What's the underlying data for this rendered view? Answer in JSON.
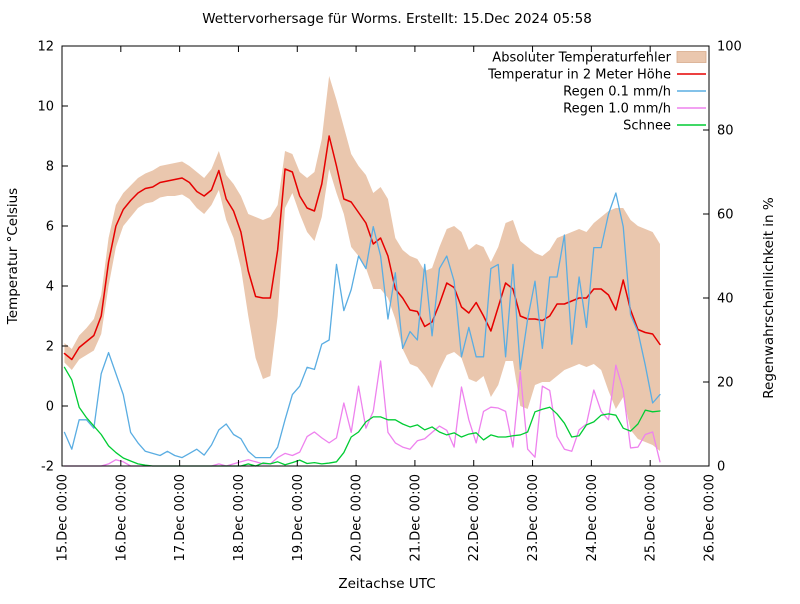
{
  "title": "Wettervorhersage für Worms. Erstellt: 15.Dec 2024 05:58",
  "axes": {
    "x": {
      "label": "Zeitachse UTC",
      "tick_labels": [
        "15.Dec 00:00",
        "16.Dec 00:00",
        "17.Dec 00:00",
        "18.Dec 00:00",
        "19.Dec 00:00",
        "20.Dec 00:00",
        "21.Dec 00:00",
        "22.Dec 00:00",
        "23.Dec 00:00",
        "24.Dec 00:00",
        "25.Dec 00:00",
        "26.Dec 00:00"
      ],
      "tick_hours": [
        0,
        24,
        48,
        72,
        96,
        120,
        144,
        168,
        192,
        216,
        240,
        264
      ],
      "range_hours": [
        0,
        264
      ]
    },
    "y_left": {
      "label": "Temperatur °Celsius",
      "min": -2,
      "max": 12,
      "tick_step": 2,
      "tick_labels": [
        "-2",
        "0",
        "2",
        "4",
        "6",
        "8",
        "10",
        "12"
      ]
    },
    "y_right": {
      "label": "Regenwahrscheinlichkeit in %",
      "min": 0,
      "max": 100,
      "tick_step": 20,
      "tick_labels": [
        "0",
        "20",
        "40",
        "60",
        "80",
        "100"
      ]
    }
  },
  "colors": {
    "band": "#eac7ae",
    "band_edge": "#d8ab8c",
    "temperature": "#e60000",
    "rain01": "#5aade2",
    "rain10": "#ee82ee",
    "snow": "#00cc33",
    "frame": "#000000",
    "background": "#ffffff"
  },
  "legend": {
    "position": "top-right",
    "items": [
      {
        "label": "Absoluter Temperaturfehler",
        "type": "band",
        "color_key": "band"
      },
      {
        "label": "Temperatur in 2 Meter Höhe",
        "type": "line",
        "color_key": "temperature"
      },
      {
        "label": "Regen 0.1 mm/h",
        "type": "line",
        "color_key": "rain01"
      },
      {
        "label": "Regen 1.0 mm/h",
        "type": "line",
        "color_key": "rain10"
      },
      {
        "label": "Schnee",
        "type": "line",
        "color_key": "snow"
      }
    ]
  },
  "chart_data": {
    "type": "line",
    "title": "Wettervorhersage für Worms. Erstellt: 15.Dec 2024 05:58",
    "xlabel": "Zeitachse UTC",
    "ylabel_left": "Temperatur °Celsius",
    "ylabel_right": "Regenwahrscheinlichkeit in %",
    "xlim_hours": [
      0,
      264
    ],
    "ylim_left": [
      -2,
      12
    ],
    "ylim_right": [
      0,
      100
    ],
    "grid": false,
    "x_unit": "hours after 15.Dec 00:00 UTC",
    "x_hours": [
      1,
      4,
      7,
      10,
      13,
      16,
      19,
      22,
      25,
      28,
      31,
      34,
      37,
      40,
      43,
      46,
      49,
      52,
      55,
      58,
      61,
      64,
      67,
      70,
      73,
      76,
      79,
      82,
      85,
      88,
      91,
      94,
      97,
      100,
      103,
      106,
      109,
      112,
      115,
      118,
      121,
      124,
      127,
      130,
      133,
      136,
      139,
      142,
      145,
      148,
      151,
      154,
      157,
      160,
      163,
      166,
      169,
      172,
      175,
      178,
      181,
      184,
      187,
      190,
      193,
      196,
      199,
      202,
      205,
      208,
      211,
      214,
      217,
      220,
      223,
      226,
      229,
      232,
      235,
      238,
      241,
      244
    ],
    "series": [
      {
        "name": "Absoluter Temperaturfehler",
        "slug": "temperature-error-band",
        "axis": "temperature",
        "kind": "band",
        "color_key": "band",
        "upper": [
          2.1,
          1.9,
          2.35,
          2.6,
          2.9,
          3.7,
          5.6,
          6.7,
          7.1,
          7.35,
          7.6,
          7.75,
          7.85,
          8.0,
          8.05,
          8.1,
          8.15,
          8.0,
          7.8,
          7.6,
          7.9,
          8.5,
          7.7,
          7.4,
          7.0,
          6.4,
          6.3,
          6.2,
          6.3,
          6.7,
          8.5,
          8.4,
          7.8,
          7.6,
          7.8,
          8.9,
          11.0,
          10.2,
          9.3,
          8.4,
          8.0,
          7.7,
          7.1,
          7.3,
          6.9,
          5.6,
          5.2,
          5.0,
          4.9,
          4.5,
          4.6,
          5.3,
          5.9,
          6.0,
          5.8,
          5.2,
          5.4,
          5.3,
          4.8,
          5.3,
          6.1,
          6.2,
          5.5,
          5.3,
          5.1,
          5.0,
          5.2,
          5.6,
          5.7,
          5.8,
          5.9,
          5.8,
          6.1,
          6.3,
          6.5,
          6.6,
          6.6,
          6.2,
          6.0,
          5.9,
          5.8,
          5.4
        ],
        "lower": [
          1.45,
          1.2,
          1.55,
          1.7,
          1.85,
          2.4,
          4.0,
          5.3,
          6.0,
          6.3,
          6.6,
          6.75,
          6.8,
          6.95,
          7.0,
          7.0,
          7.05,
          6.9,
          6.6,
          6.4,
          6.7,
          7.2,
          6.2,
          5.6,
          4.6,
          3.0,
          1.6,
          0.9,
          1.0,
          3.0,
          6.6,
          7.1,
          6.4,
          5.8,
          5.5,
          6.3,
          7.9,
          7.1,
          6.4,
          5.3,
          5.0,
          4.6,
          3.9,
          3.9,
          3.6,
          2.9,
          1.9,
          1.4,
          1.3,
          1.0,
          0.6,
          1.2,
          1.7,
          1.8,
          1.6,
          0.9,
          0.8,
          1.0,
          0.3,
          0.7,
          1.5,
          1.5,
          0.0,
          -0.1,
          0.7,
          0.8,
          0.8,
          1.0,
          1.2,
          1.3,
          1.4,
          1.3,
          1.4,
          1.2,
          0.5,
          -0.1,
          0.3,
          -0.8,
          -1.1,
          -1.2,
          -1.3,
          -1.5
        ]
      },
      {
        "name": "Temperatur in 2 Meter Höhe",
        "slug": "temperature-2m-line",
        "axis": "temperature",
        "kind": "line",
        "color_key": "temperature",
        "values": [
          1.75,
          1.55,
          1.95,
          2.15,
          2.35,
          3.0,
          4.8,
          6.0,
          6.55,
          6.85,
          7.1,
          7.25,
          7.3,
          7.45,
          7.5,
          7.55,
          7.6,
          7.45,
          7.15,
          7.0,
          7.2,
          7.85,
          6.9,
          6.5,
          5.8,
          4.5,
          3.65,
          3.6,
          3.6,
          5.2,
          7.9,
          7.8,
          7.0,
          6.6,
          6.5,
          7.4,
          9.0,
          8.0,
          6.9,
          6.8,
          6.45,
          6.1,
          5.4,
          5.6,
          5.0,
          3.9,
          3.6,
          3.2,
          3.15,
          2.65,
          2.8,
          3.4,
          4.1,
          3.95,
          3.3,
          3.1,
          3.45,
          3.0,
          2.5,
          3.3,
          4.1,
          3.9,
          3.0,
          2.9,
          2.9,
          2.85,
          3.0,
          3.4,
          3.4,
          3.5,
          3.6,
          3.6,
          3.9,
          3.9,
          3.7,
          3.2,
          4.2,
          3.2,
          2.55,
          2.45,
          2.4,
          2.05
        ]
      },
      {
        "name": "Regen 0.1 mm/h",
        "slug": "rain-01-line",
        "axis": "percent",
        "kind": "line",
        "color_key": "rain01",
        "values": [
          8,
          4,
          11,
          11,
          9,
          22,
          27,
          22,
          17,
          8,
          5.5,
          3.5,
          3,
          2.5,
          3.5,
          2.5,
          2,
          3,
          4,
          2.6,
          5,
          8.6,
          10,
          7.5,
          6.5,
          3.5,
          2,
          2,
          2,
          4.5,
          11,
          17,
          19,
          23.5,
          23,
          29,
          30,
          48,
          37,
          42,
          50,
          47,
          57,
          50,
          35,
          46,
          28,
          32,
          30,
          48,
          31,
          47,
          50,
          44,
          26,
          33,
          26,
          26,
          47,
          48,
          26,
          48,
          23,
          35,
          44,
          28,
          45,
          45,
          55,
          29,
          45,
          33,
          52,
          52,
          60,
          65,
          57,
          36,
          32,
          24,
          15,
          17
        ]
      },
      {
        "name": "Regen 1.0 mm/h",
        "slug": "rain-10-line",
        "axis": "percent",
        "kind": "line",
        "color_key": "rain10",
        "values": [
          0,
          0,
          0,
          0,
          0,
          0,
          0.5,
          1.5,
          1,
          0,
          0,
          0,
          0,
          0,
          0,
          0,
          0,
          0,
          0,
          0,
          0,
          0.5,
          0,
          0.5,
          1,
          1.5,
          1,
          0.5,
          0.5,
          2,
          3,
          2.5,
          3.3,
          7,
          8.1,
          6.7,
          5.5,
          6.7,
          15,
          8,
          19,
          9,
          13,
          25,
          8,
          5.5,
          4.5,
          4,
          6,
          6.5,
          8,
          9.5,
          8.5,
          4.5,
          18.8,
          11,
          5.5,
          13,
          14,
          13.8,
          13,
          4.5,
          22.4,
          4,
          2.1,
          19,
          18,
          7,
          4,
          3.5,
          8.6,
          10,
          18.1,
          13,
          11,
          24,
          18,
          4.3,
          4.5,
          7.5,
          8.1,
          1
        ]
      },
      {
        "name": "Schnee",
        "slug": "snow-line",
        "axis": "percent",
        "kind": "line",
        "color_key": "snow",
        "values": [
          23.5,
          20.5,
          14,
          11.5,
          9.5,
          7.5,
          4.8,
          3.2,
          1.9,
          1.2,
          0.5,
          0.2,
          0,
          0,
          0,
          0,
          0,
          0,
          0,
          0,
          0,
          0,
          0,
          0,
          0,
          0.5,
          0,
          0.7,
          0.5,
          1.0,
          0.3,
          0.8,
          1.4,
          0.6,
          0.8,
          0.5,
          0.7,
          1.0,
          3.2,
          6.9,
          8.1,
          10.5,
          11.7,
          11.7,
          11,
          11,
          10,
          9.3,
          9.8,
          8.6,
          9.3,
          8.1,
          7.4,
          7.9,
          6.9,
          7.6,
          7.9,
          6.2,
          7.4,
          6.9,
          6.9,
          7.2,
          7.4,
          8.1,
          12.9,
          13.5,
          14,
          12.4,
          10.2,
          6.9,
          7.2,
          9.8,
          10.5,
          12.1,
          12.4,
          12.1,
          9.0,
          8.3,
          10,
          13.3,
          12.9,
          13.1
        ]
      }
    ]
  }
}
